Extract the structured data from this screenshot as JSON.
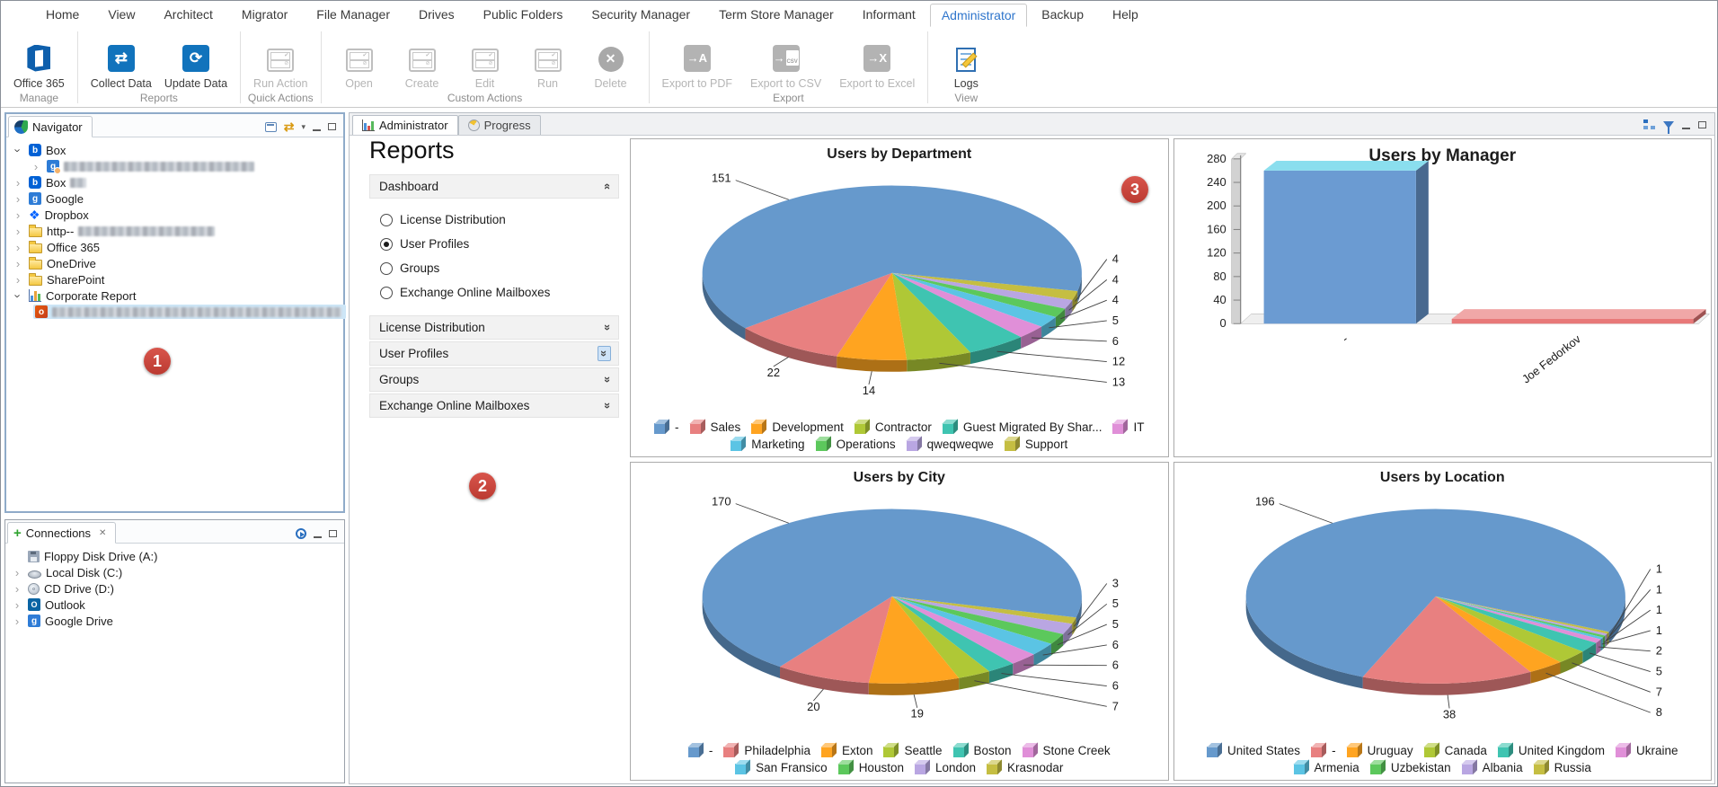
{
  "menu": {
    "items": [
      "Home",
      "View",
      "Architect",
      "Migrator",
      "File Manager",
      "Drives",
      "Public Folders",
      "Security Manager",
      "Term Store Manager",
      "Informant",
      "Administrator",
      "Backup",
      "Help"
    ],
    "active": "Administrator"
  },
  "ribbon": {
    "groups": [
      {
        "label": "Manage",
        "buttons": [
          {
            "label": "Office 365",
            "enabled": true
          }
        ]
      },
      {
        "label": "Reports",
        "buttons": [
          {
            "label": "Collect Data",
            "enabled": true
          },
          {
            "label": "Update Data",
            "enabled": true
          }
        ]
      },
      {
        "label": "Quick Actions",
        "buttons": [
          {
            "label": "Run Action",
            "enabled": false
          }
        ]
      },
      {
        "label": "Custom Actions",
        "buttons": [
          {
            "label": "Open",
            "enabled": false
          },
          {
            "label": "Create",
            "enabled": false
          },
          {
            "label": "Edit",
            "enabled": false
          },
          {
            "label": "Run",
            "enabled": false
          },
          {
            "label": "Delete",
            "enabled": false
          }
        ]
      },
      {
        "label": "Export",
        "buttons": [
          {
            "label": "Export to PDF",
            "enabled": false
          },
          {
            "label": "Export to CSV",
            "enabled": false
          },
          {
            "label": "Export to Excel",
            "enabled": false
          }
        ]
      },
      {
        "label": "View",
        "buttons": [
          {
            "label": "Logs",
            "enabled": true
          }
        ]
      }
    ]
  },
  "navigator": {
    "title": "Navigator",
    "items": [
      {
        "label": "Box"
      },
      {
        "label": ""
      },
      {
        "label": "Box"
      },
      {
        "label": "Google"
      },
      {
        "label": "Dropbox"
      },
      {
        "label": "http--"
      },
      {
        "label": "Office 365"
      },
      {
        "label": "OneDrive"
      },
      {
        "label": "SharePoint"
      },
      {
        "label": "Corporate Report"
      },
      {
        "label": ""
      }
    ]
  },
  "connections": {
    "title": "Connections",
    "items": [
      {
        "label": "Floppy Disk Drive (A:)"
      },
      {
        "label": "Local Disk (C:)"
      },
      {
        "label": "CD Drive (D:)"
      },
      {
        "label": "Outlook"
      },
      {
        "label": "Google Drive"
      }
    ]
  },
  "workspace": {
    "tabs": [
      {
        "label": "Administrator"
      },
      {
        "label": "Progress"
      }
    ],
    "active": "Administrator"
  },
  "reports_panel": {
    "title": "Reports",
    "dashboard_header": "Dashboard",
    "options": [
      {
        "label": "License Distribution",
        "selected": false
      },
      {
        "label": "User Profiles",
        "selected": true
      },
      {
        "label": "Groups",
        "selected": false
      },
      {
        "label": "Exchange Online Mailboxes",
        "selected": false
      }
    ],
    "collapsed_sections": [
      "License Distribution",
      "User Profiles",
      "Groups",
      "Exchange Online Mailboxes"
    ]
  },
  "annotation_badges": [
    "1",
    "2",
    "3"
  ],
  "chart_data": [
    {
      "type": "pie",
      "title": "Users by Department",
      "labels": [
        "-",
        "Sales",
        "Development",
        "Contractor",
        "Guest Migrated By Shar...",
        "IT",
        "Marketing",
        "Operations",
        "qweqweqwe",
        "Support"
      ],
      "values": [
        151,
        22,
        14,
        13,
        12,
        6,
        5,
        4,
        4,
        4
      ],
      "colors": [
        "#6699CC",
        "#E88080",
        "#FFA420",
        "#AFC836",
        "#3FC4B1",
        "#E08FD8",
        "#5BC4E4",
        "#5CC85C",
        "#B9A6E2",
        "#C5BE42"
      ],
      "legend_position": "bottom"
    },
    {
      "type": "bar",
      "title": "Users by Manager",
      "categories": [
        "-",
        "Joe Fedorkov"
      ],
      "values": [
        260,
        8
      ],
      "ylim": [
        0,
        280
      ],
      "ytick_step": 40,
      "colors": [
        "#6B9BD2",
        "#E87878"
      ],
      "legend_position": "none"
    },
    {
      "type": "pie",
      "title": "Users by City",
      "labels": [
        "-",
        "Philadelphia",
        "Exton",
        "Seattle",
        "Boston",
        "Stone Creek",
        "San Fransico",
        "Houston",
        "London",
        "Krasnodar"
      ],
      "values": [
        170,
        20,
        19,
        7,
        6,
        6,
        6,
        5,
        5,
        3
      ],
      "colors": [
        "#6699CC",
        "#E88080",
        "#FFA420",
        "#AFC836",
        "#3FC4B1",
        "#E08FD8",
        "#5BC4E4",
        "#5CC85C",
        "#B9A6E2",
        "#C5BE42"
      ],
      "legend_position": "bottom"
    },
    {
      "type": "pie",
      "title": "Users by Location",
      "labels": [
        "United States",
        "-",
        "Uruguay",
        "Canada",
        "United Kingdom",
        "Ukraine",
        "Armenia",
        "Uzbekistan",
        "Albania",
        "Russia"
      ],
      "values": [
        196,
        38,
        8,
        7,
        5,
        2,
        1,
        1,
        1,
        1
      ],
      "colors": [
        "#6699CC",
        "#E88080",
        "#FFA420",
        "#AFC836",
        "#3FC4B1",
        "#E08FD8",
        "#5BC4E4",
        "#5CC85C",
        "#B9A6E2",
        "#C5BE42"
      ],
      "legend_position": "bottom"
    }
  ]
}
